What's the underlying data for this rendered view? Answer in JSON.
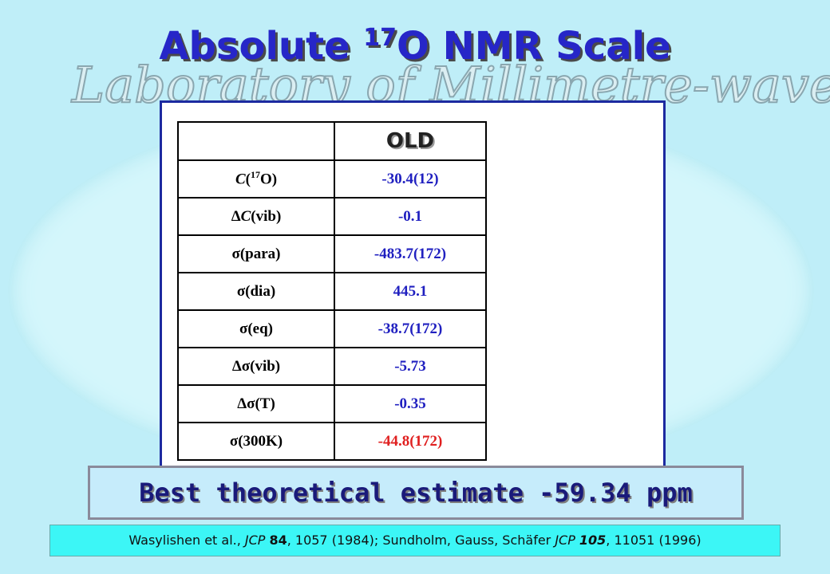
{
  "slide": {
    "title": {
      "prefix": "Absolute ",
      "sup": "17",
      "suffix": "O NMR Scale"
    },
    "watermark": "Laboratory of Millimetre-wave",
    "table": {
      "header": "OLD",
      "rows": [
        {
          "label": [
            "C",
            "(",
            "17",
            "O)"
          ],
          "value": "-30.4(12)"
        },
        {
          "label": [
            "Δ",
            "C",
            "(vib)"
          ],
          "value": "-0.1"
        },
        {
          "label": [
            "σ(para)"
          ],
          "value": "-483.7(172)"
        },
        {
          "label": [
            "σ(dia)"
          ],
          "value": "445.1"
        },
        {
          "label": [
            "σ(eq)"
          ],
          "value": "-38.7(172)"
        },
        {
          "label": [
            "Δσ(vib)"
          ],
          "value": "-5.73"
        },
        {
          "label": [
            "Δσ(T)"
          ],
          "value": "-0.35"
        },
        {
          "label": [
            "σ(300K)"
          ],
          "value": "-44.8(172)"
        }
      ]
    },
    "banner": "Best theoretical estimate -59.34 ppm",
    "citation": [
      "Wasylishen et al., ",
      "JCP",
      "84",
      ", 1057 (1984); Sundholm, Gauss, Schäfer ",
      "JCP",
      "105",
      ", 11051 (1996)"
    ]
  }
}
